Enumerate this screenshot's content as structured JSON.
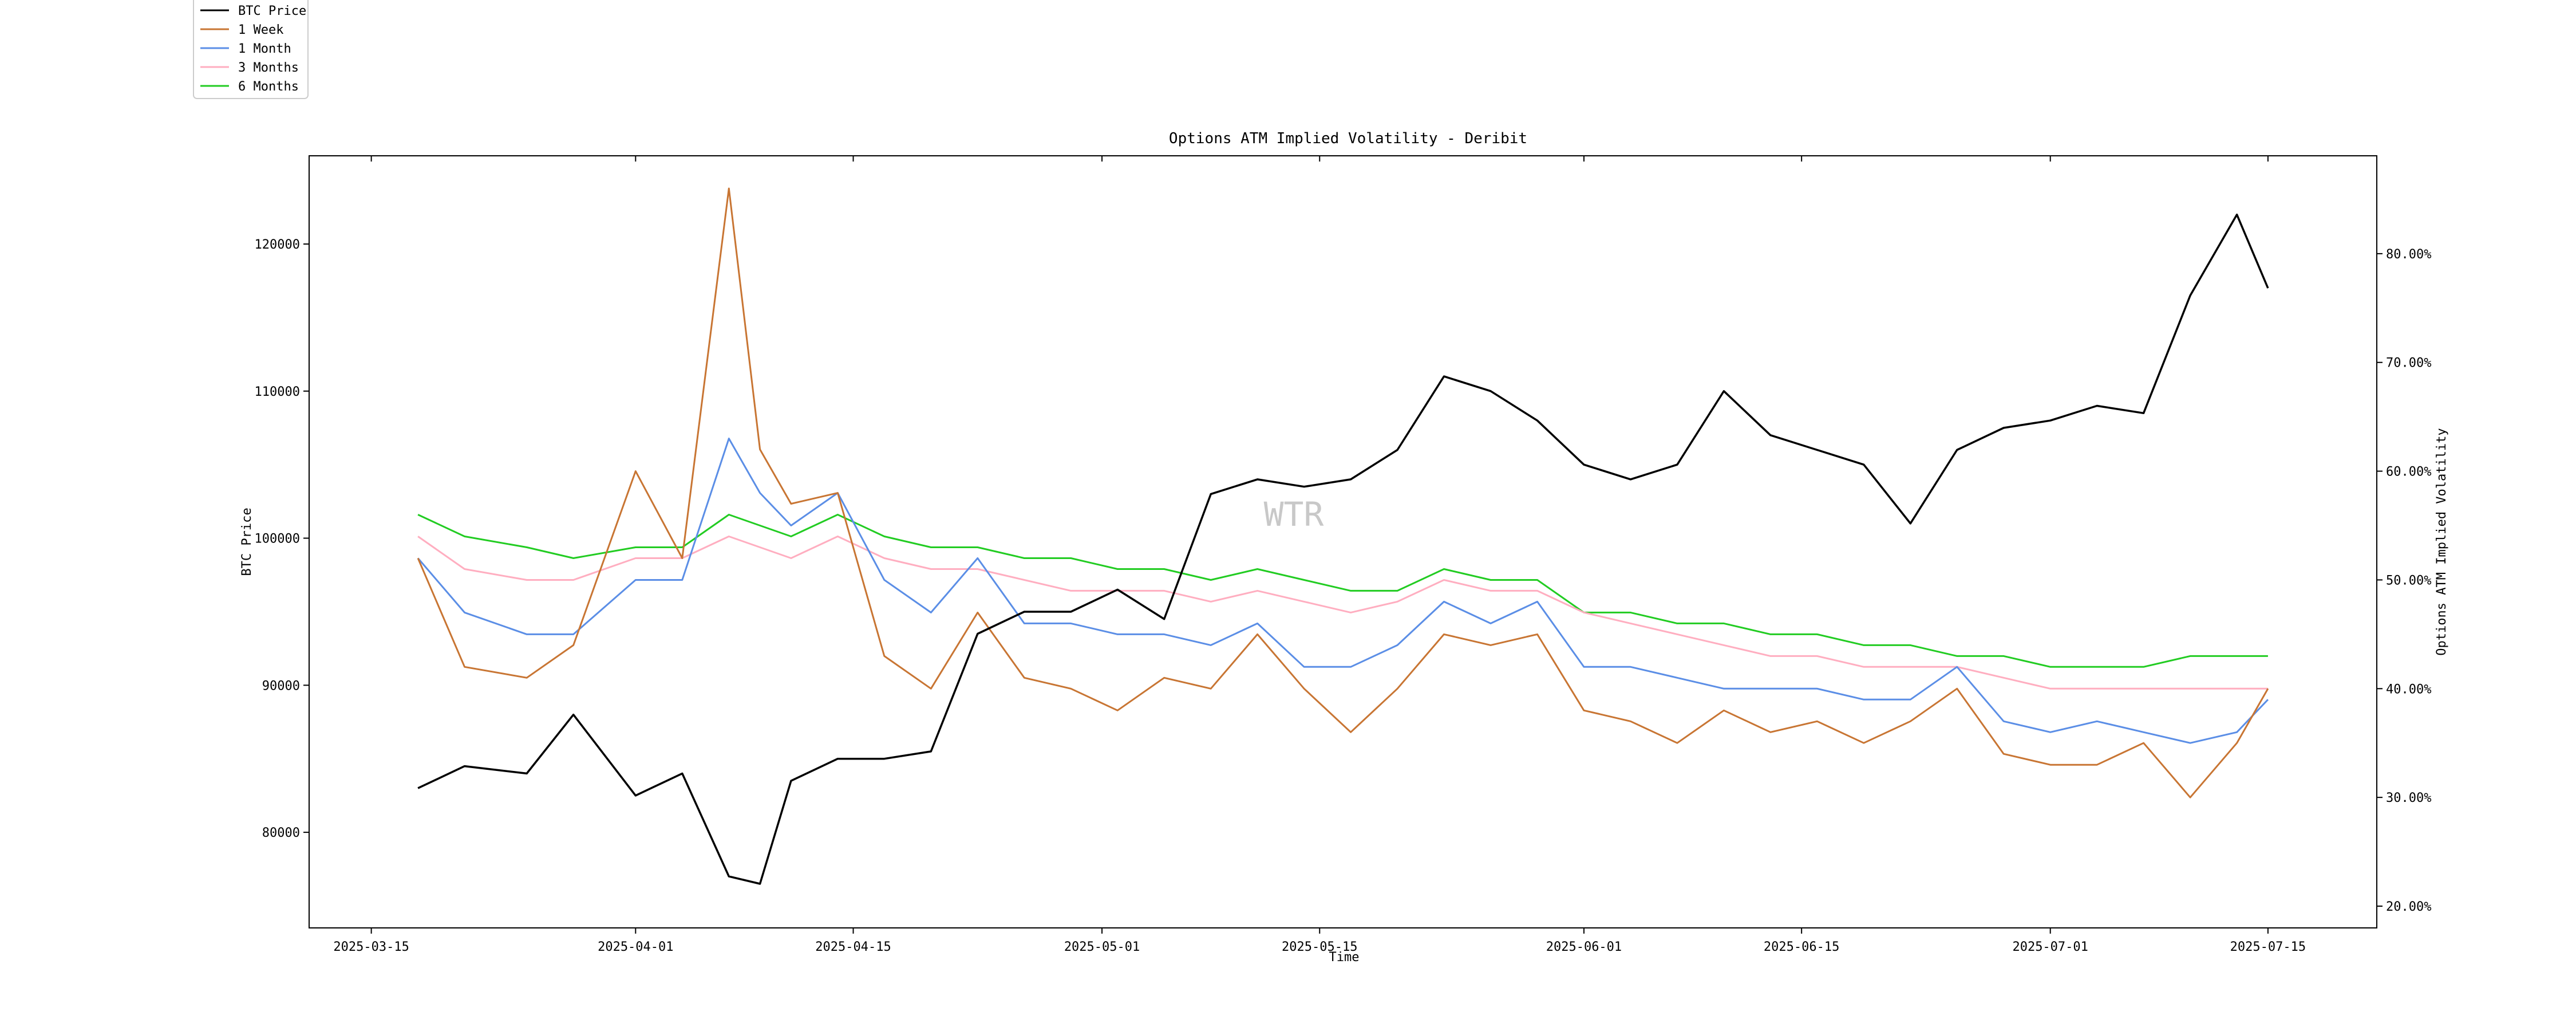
{
  "chart_data": {
    "type": "line",
    "title": "Options ATM Implied Volatility - Deribit",
    "xlabel": "Time",
    "ylabel_left": "BTC Price",
    "ylabel_right": "Options ATM Implied Volatility",
    "watermark": "WTR",
    "legend_position": "top-left",
    "grid": false,
    "x_tick_labels": [
      "2025-03-15",
      "2025-04-01",
      "2025-04-15",
      "2025-05-01",
      "2025-05-15",
      "2025-06-01",
      "2025-06-15",
      "2025-07-01",
      "2025-07-15"
    ],
    "y_left_tick_labels": [
      "80000",
      "90000",
      "100000",
      "110000",
      "120000"
    ],
    "y_left_ticks": [
      80000,
      90000,
      100000,
      110000,
      120000
    ],
    "y_left_lim": [
      73500,
      126000
    ],
    "y_right_tick_labels": [
      "20.00%",
      "30.00%",
      "40.00%",
      "50.00%",
      "60.00%",
      "70.00%",
      "80.00%"
    ],
    "y_right_ticks": [
      20,
      30,
      40,
      50,
      60,
      70,
      80
    ],
    "y_right_lim": [
      18,
      89
    ],
    "x_range": [
      "2025-03-11",
      "2025-07-22"
    ],
    "x_points": [
      "2025-03-18",
      "2025-03-21",
      "2025-03-25",
      "2025-03-28",
      "2025-04-01",
      "2025-04-04",
      "2025-04-07",
      "2025-04-09",
      "2025-04-11",
      "2025-04-14",
      "2025-04-17",
      "2025-04-20",
      "2025-04-23",
      "2025-04-26",
      "2025-04-29",
      "2025-05-02",
      "2025-05-05",
      "2025-05-08",
      "2025-05-11",
      "2025-05-14",
      "2025-05-17",
      "2025-05-20",
      "2025-05-23",
      "2025-05-26",
      "2025-05-29",
      "2025-06-01",
      "2025-06-04",
      "2025-06-07",
      "2025-06-10",
      "2025-06-13",
      "2025-06-16",
      "2025-06-19",
      "2025-06-22",
      "2025-06-25",
      "2025-06-28",
      "2025-07-01",
      "2025-07-04",
      "2025-07-07",
      "2025-07-10",
      "2025-07-13",
      "2025-07-15"
    ],
    "series": [
      {
        "name": "BTC Price",
        "axis": "left",
        "color": "#000000",
        "values": [
          83000,
          84500,
          84000,
          88000,
          82500,
          84000,
          77000,
          76500,
          83500,
          85000,
          85000,
          85500,
          93500,
          95000,
          95000,
          96500,
          94500,
          103000,
          104000,
          103500,
          104000,
          106000,
          111000,
          110000,
          108000,
          105000,
          104000,
          105000,
          110000,
          107000,
          106000,
          105000,
          101000,
          106000,
          107500,
          108000,
          109000,
          108500,
          116500,
          122000,
          117000
        ]
      },
      {
        "name": "1 Week",
        "axis": "right",
        "color": "#c87533",
        "values": [
          52,
          42,
          41,
          44,
          60,
          52,
          86,
          62,
          57,
          58,
          43,
          40,
          47,
          41,
          40,
          38,
          41,
          40,
          45,
          40,
          36,
          40,
          45,
          44,
          45,
          38,
          37,
          35,
          38,
          36,
          37,
          35,
          37,
          40,
          34,
          33,
          33,
          35,
          30,
          35,
          40
        ]
      },
      {
        "name": "1 Month",
        "axis": "right",
        "color": "#5b8ee6",
        "values": [
          52,
          47,
          45,
          45,
          50,
          50,
          63,
          58,
          55,
          58,
          50,
          47,
          52,
          46,
          46,
          45,
          45,
          44,
          46,
          42,
          42,
          44,
          48,
          46,
          48,
          42,
          42,
          41,
          40,
          40,
          40,
          39,
          39,
          42,
          37,
          36,
          37,
          36,
          35,
          36,
          39
        ]
      },
      {
        "name": "3 Months",
        "axis": "right",
        "color": "#ffaec0",
        "values": [
          54,
          51,
          50,
          50,
          52,
          52,
          54,
          53,
          52,
          54,
          52,
          51,
          51,
          50,
          49,
          49,
          49,
          48,
          49,
          48,
          47,
          48,
          50,
          49,
          49,
          47,
          46,
          45,
          44,
          43,
          43,
          42,
          42,
          42,
          41,
          40,
          40,
          40,
          40,
          40,
          40
        ]
      },
      {
        "name": "6 Months",
        "axis": "right",
        "color": "#22cc22",
        "values": [
          56,
          54,
          53,
          52,
          53,
          53,
          56,
          55,
          54,
          56,
          54,
          53,
          53,
          52,
          52,
          51,
          51,
          50,
          51,
          50,
          49,
          49,
          51,
          50,
          50,
          47,
          47,
          46,
          46,
          45,
          45,
          44,
          44,
          43,
          43,
          42,
          42,
          42,
          43,
          43,
          43
        ]
      }
    ]
  }
}
